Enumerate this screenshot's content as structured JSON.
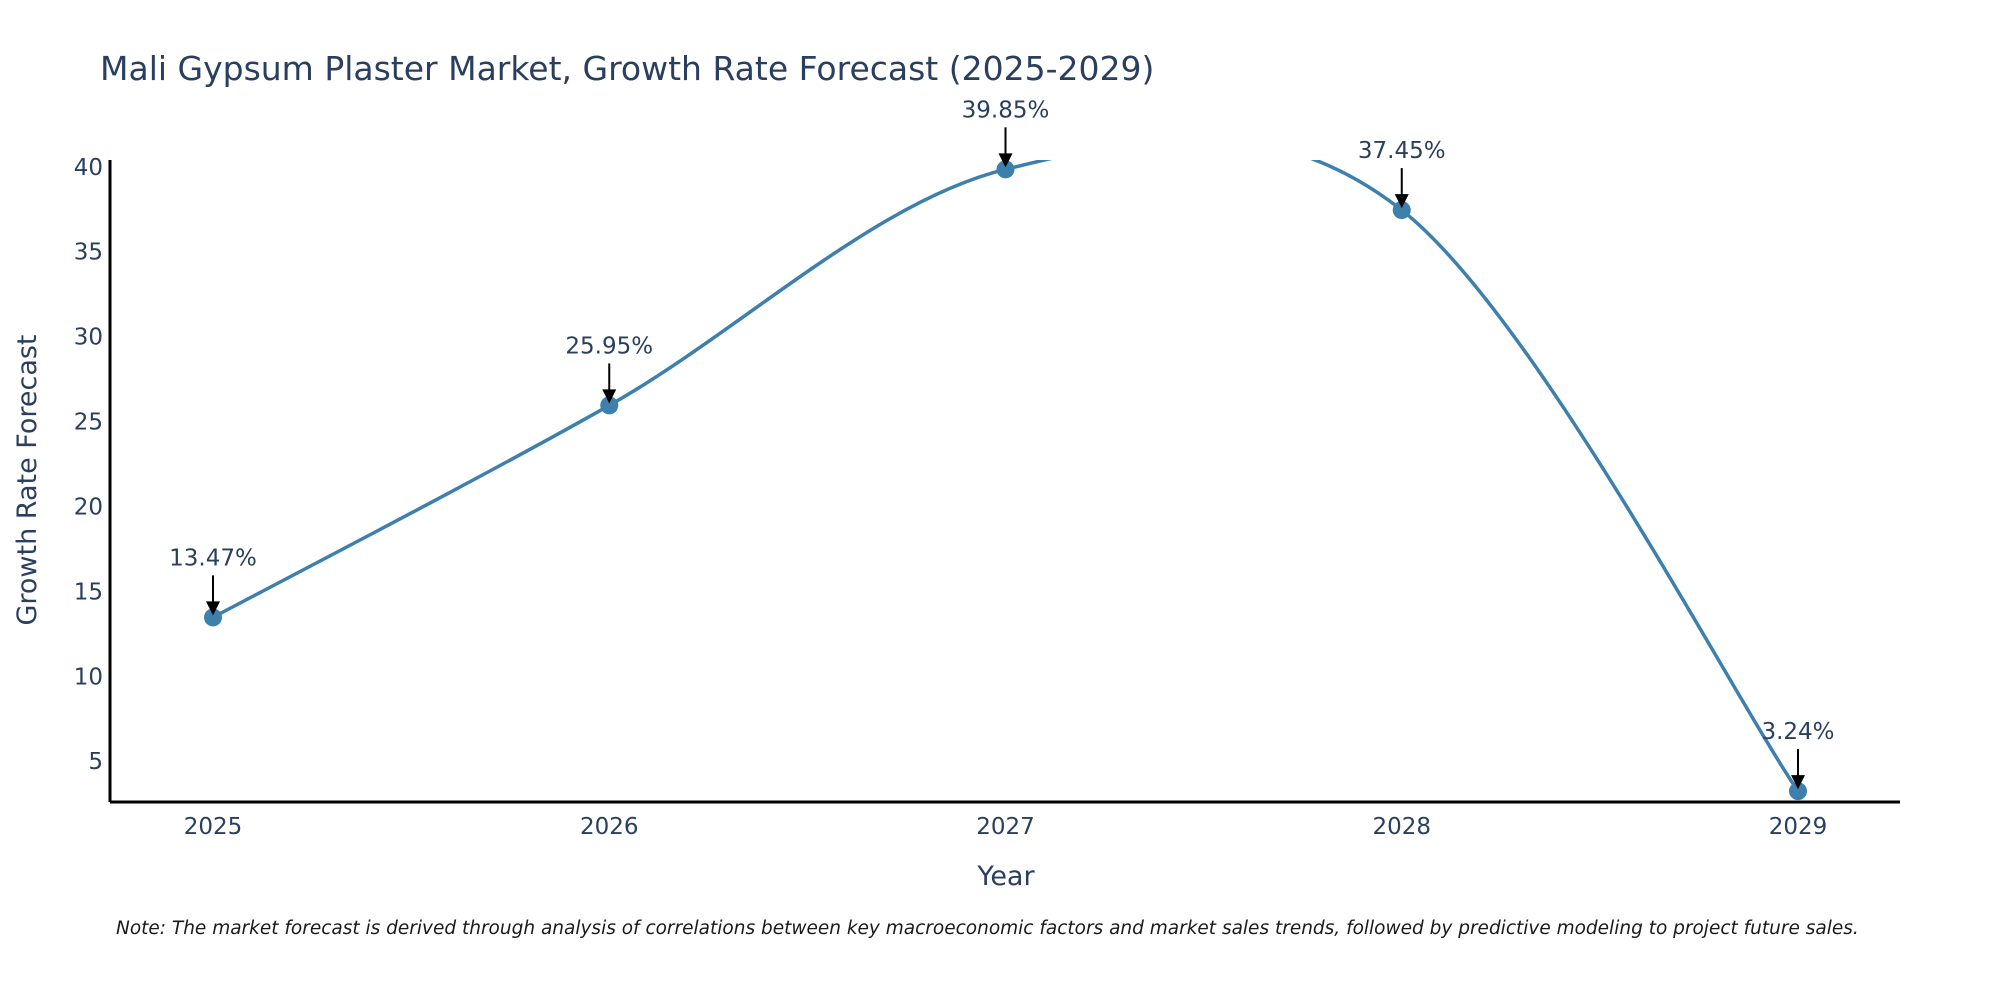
{
  "chart_data": {
    "type": "line",
    "title": "Mali Gypsum Plaster Market, Growth Rate Forecast (2025-2029)",
    "xlabel": "Year",
    "ylabel": "Growth Rate Forecast",
    "categories": [
      "2025",
      "2026",
      "2027",
      "2028",
      "2029"
    ],
    "series": [
      {
        "name": "Growth Rate Forecast",
        "values": [
          13.47,
          25.95,
          39.85,
          37.45,
          3.24
        ]
      }
    ],
    "data_labels": [
      "13.47%",
      "25.95%",
      "39.85%",
      "37.45%",
      "3.24%"
    ],
    "y_ticks": [
      5,
      10,
      15,
      20,
      25,
      30,
      35,
      40
    ],
    "ylim": [
      2.6,
      40.4
    ],
    "line_color": "#3d7fad",
    "marker_color": "#3d7fad",
    "line_shape": "spline",
    "grid": false
  },
  "note": "Note: The market forecast is derived through analysis of correlations between key macroeconomic factors and market sales trends, followed by predictive modeling to project future sales."
}
